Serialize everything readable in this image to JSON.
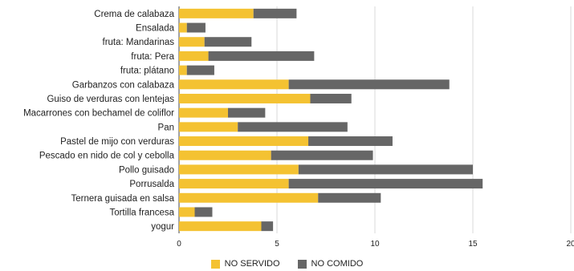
{
  "chart_data": {
    "type": "bar",
    "orientation": "horizontal",
    "stacked": true,
    "title": "",
    "xlabel": "",
    "ylabel": "",
    "xlim": [
      0,
      20
    ],
    "ticks": [
      "0",
      "5",
      "10",
      "15",
      "20"
    ],
    "tick_values": [
      0,
      5,
      10,
      15,
      20
    ],
    "grid": true,
    "legend_position": "bottom",
    "categories": [
      "Crema de calabaza",
      "Ensalada",
      "fruta: Mandarinas",
      "fruta: Pera",
      "fruta: plátano",
      "Garbanzos con calabaza",
      "Guiso de verduras con lentejas",
      "Macarrones con bechamel de coliflor",
      "Pan",
      "Pastel de mijo con verduras",
      "Pescado en nido de col y cebolla",
      "Pollo guisado",
      "Porrusalda",
      "Ternera guisada en salsa",
      "Tortilla francesa",
      "yogur"
    ],
    "series": [
      {
        "name": "NO SERVIDO",
        "color": "#F4C232",
        "values": [
          3.8,
          0.4,
          1.3,
          1.5,
          0.4,
          5.6,
          6.7,
          2.5,
          3.0,
          6.6,
          4.7,
          6.1,
          5.6,
          7.1,
          0.8,
          4.2
        ]
      },
      {
        "name": "NO COMIDO",
        "color": "#666666",
        "values": [
          2.2,
          0.95,
          2.4,
          5.4,
          1.4,
          8.2,
          2.1,
          1.9,
          5.6,
          4.3,
          5.2,
          8.9,
          9.9,
          3.2,
          0.9,
          0.6
        ]
      }
    ]
  }
}
